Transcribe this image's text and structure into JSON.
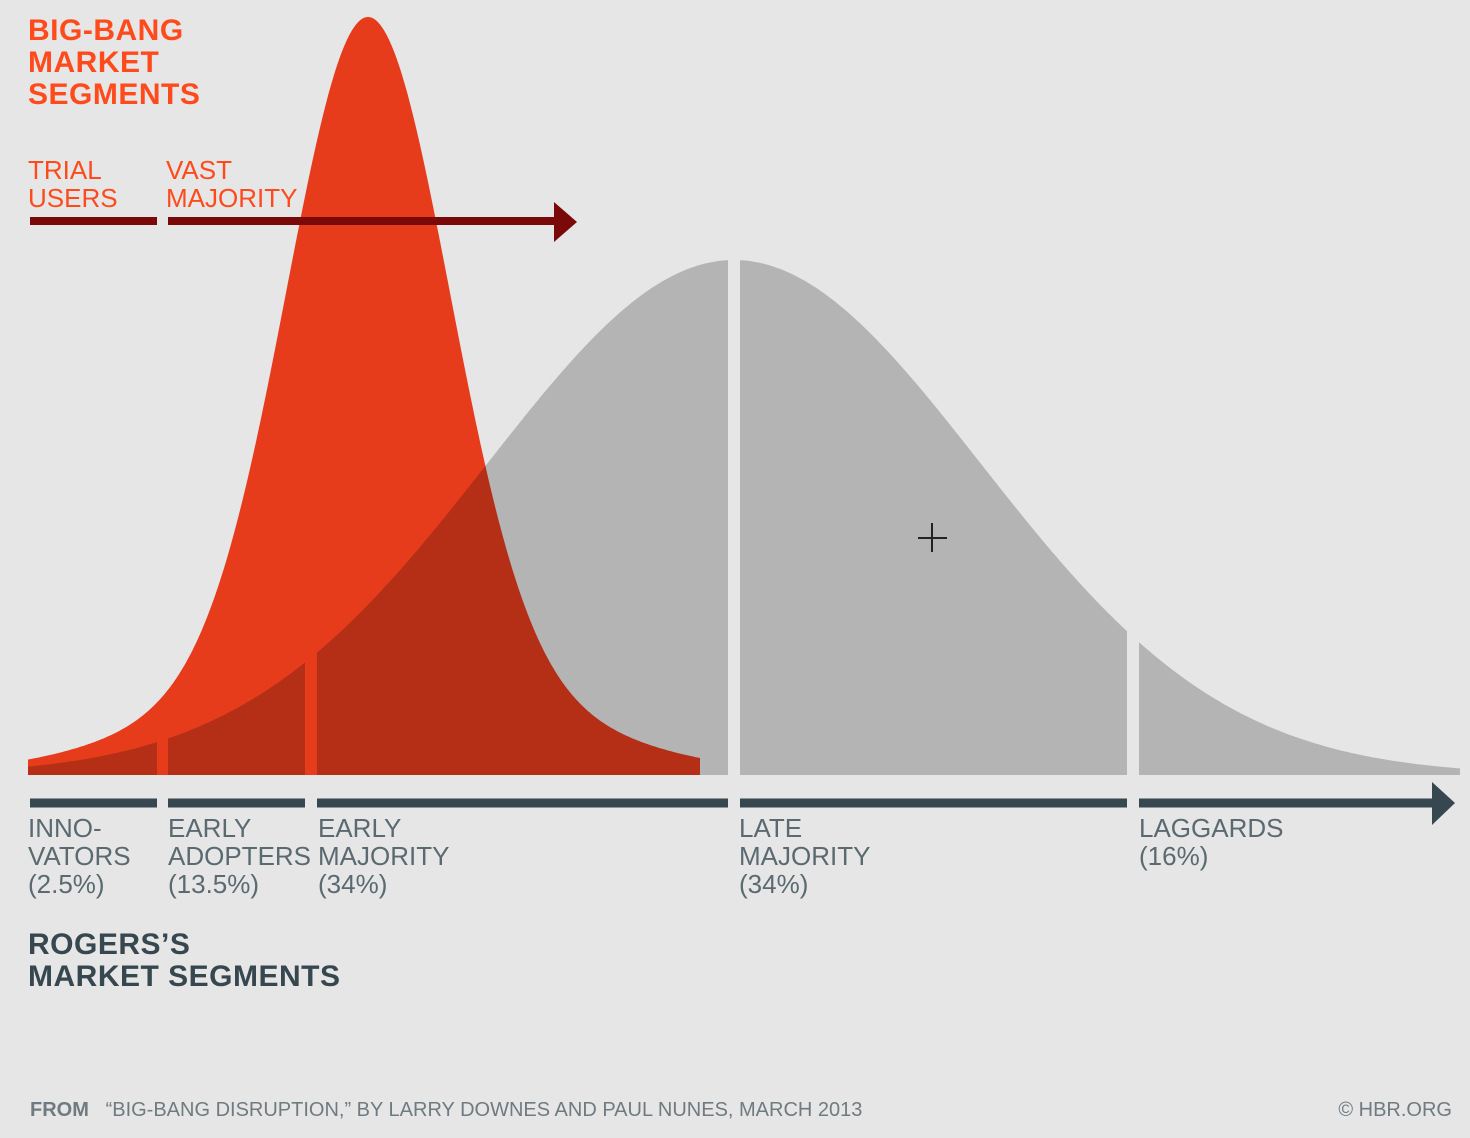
{
  "big_bang": {
    "title": [
      "BIG-BANG",
      "MARKET",
      "SEGMENTS"
    ],
    "trial": [
      "TRIAL",
      "USERS"
    ],
    "vast": [
      "VAST",
      "MAJORITY"
    ]
  },
  "rogers": {
    "title": [
      "ROGERS’S",
      "MARKET SEGMENTS"
    ],
    "segments": [
      {
        "lines": [
          "INNO-",
          "VATORS"
        ],
        "share": "(2.5%)"
      },
      {
        "lines": [
          "EARLY",
          "ADOPTERS"
        ],
        "share": "(13.5%)"
      },
      {
        "lines": [
          "EARLY",
          "MAJORITY"
        ],
        "share": "(34%)"
      },
      {
        "lines": [
          "LATE",
          "MAJORITY"
        ],
        "share": "(34%)"
      },
      {
        "lines": [
          "LAGGARDS"
        ],
        "share": "(16%)"
      }
    ]
  },
  "footer": {
    "from": "FROM",
    "citation": "“BIG-BANG DISRUPTION,” BY LARRY DOWNES AND PAUL NUNES, MARCH 2013",
    "credit": "© HBR.ORG"
  }
}
